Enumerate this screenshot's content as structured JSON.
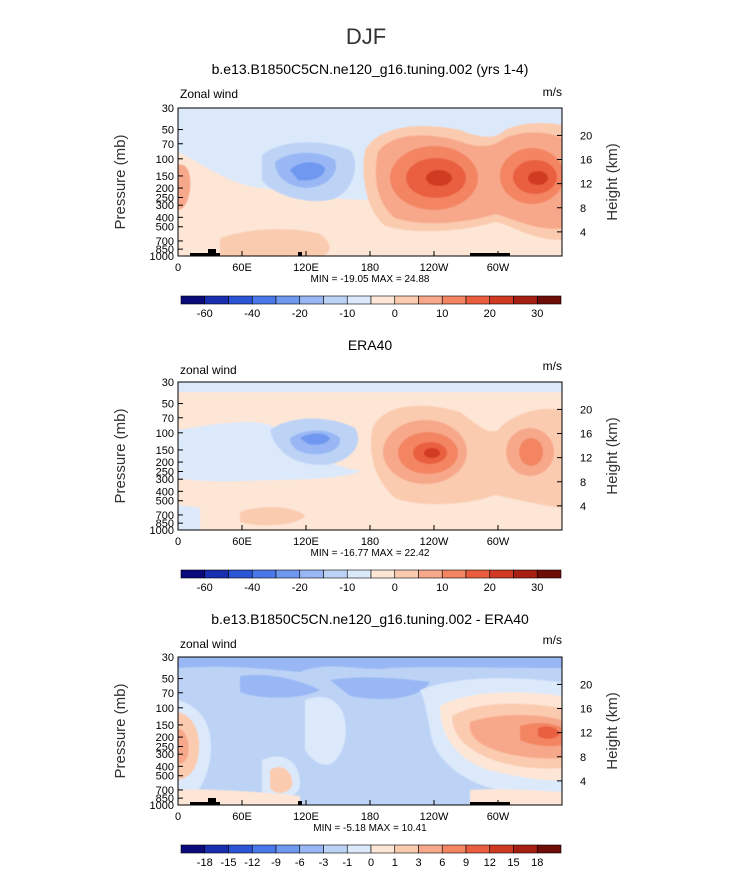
{
  "figure_title": "DJF",
  "chart_data": [
    {
      "type": "heatmap",
      "title": "b.e13.B1850C5CN.ne120_g16.tuning.002 (yrs 1-4)",
      "left_label": "Zonal wind",
      "units": "m/s",
      "ylabel": "Pressure (mb)",
      "y2label": "Height (km)",
      "x_ticks": [
        "0",
        "60E",
        "120E",
        "180",
        "120W",
        "60W"
      ],
      "y_ticks": [
        "30",
        "50",
        "70",
        "100",
        "150",
        "200",
        "250",
        "300",
        "400",
        "500",
        "700",
        "850",
        "1000"
      ],
      "y2_ticks": [
        "20",
        "16",
        "12",
        "8",
        "4"
      ],
      "min_max": "MIN = -19.05   MAX =  24.88",
      "min": -19.05,
      "max": 24.88,
      "colorbar_labels": [
        "-60",
        "-40",
        "-20",
        "-10",
        "0",
        "10",
        "20",
        "30"
      ],
      "colors": [
        "#0a0a7a",
        "#1a2fb0",
        "#2c54d6",
        "#4a78ea",
        "#6f98f0",
        "#98b7f4",
        "#bdd3f6",
        "#dce9fb",
        "#fde6d6",
        "#fbcbb0",
        "#f7a88a",
        "#f38563",
        "#ea5e3f",
        "#d13a22",
        "#a61f12",
        "#6e0c08"
      ],
      "colorbar_gap": 8.5,
      "land": true
    },
    {
      "type": "heatmap",
      "title": "ERA40",
      "left_label": "zonal wind",
      "units": "m/s",
      "ylabel": "Pressure (mb)",
      "y2label": "Height (km)",
      "x_ticks": [
        "0",
        "60E",
        "120E",
        "180",
        "120W",
        "60W"
      ],
      "y_ticks": [
        "30",
        "50",
        "70",
        "100",
        "150",
        "200",
        "250",
        "300",
        "400",
        "500",
        "700",
        "850",
        "1000"
      ],
      "y2_ticks": [
        "20",
        "16",
        "12",
        "8",
        "4"
      ],
      "min_max": "MIN = -16.77   MAX =  22.42",
      "min": -16.77,
      "max": 22.42,
      "colorbar_labels": [
        "-60",
        "-40",
        "-20",
        "-10",
        "0",
        "10",
        "20",
        "30"
      ],
      "colors": [
        "#0a0a7a",
        "#1a2fb0",
        "#2c54d6",
        "#4a78ea",
        "#6f98f0",
        "#98b7f4",
        "#bdd3f6",
        "#dce9fb",
        "#fde6d6",
        "#fbcbb0",
        "#f7a88a",
        "#f38563",
        "#ea5e3f",
        "#d13a22",
        "#a61f12",
        "#6e0c08"
      ],
      "colorbar_gap": 8.5,
      "land": false
    },
    {
      "type": "heatmap",
      "title": "b.e13.B1850C5CN.ne120_g16.tuning.002 - ERA40",
      "left_label": "zonal wind",
      "units": "m/s",
      "ylabel": "Pressure (mb)",
      "y2label": "Height (km)",
      "x_ticks": [
        "0",
        "60E",
        "120E",
        "180",
        "120W",
        "60W"
      ],
      "y_ticks": [
        "30",
        "50",
        "70",
        "100",
        "150",
        "200",
        "250",
        "300",
        "400",
        "500",
        "700",
        "850",
        "1000"
      ],
      "y2_ticks": [
        "20",
        "16",
        "12",
        "8",
        "4"
      ],
      "min_max": "MIN = -5.18   MAX =  10.41",
      "min": -5.18,
      "max": 10.41,
      "colorbar_labels": [
        "-18",
        "-15",
        "-12",
        "-9",
        "-6",
        "-3",
        "-1",
        "0",
        "1",
        "3",
        "6",
        "9",
        "12",
        "15",
        "18"
      ],
      "colors": [
        "#0a0a7a",
        "#1a2fb0",
        "#2c54d6",
        "#4a78ea",
        "#6f98f0",
        "#98b7f4",
        "#bdd3f6",
        "#dce9fb",
        "#fde6d6",
        "#fbcbb0",
        "#f7a88a",
        "#f38563",
        "#ea5e3f",
        "#d13a22",
        "#a61f12",
        "#6e0c08"
      ],
      "colorbar_gap": 1,
      "land": true
    }
  ]
}
